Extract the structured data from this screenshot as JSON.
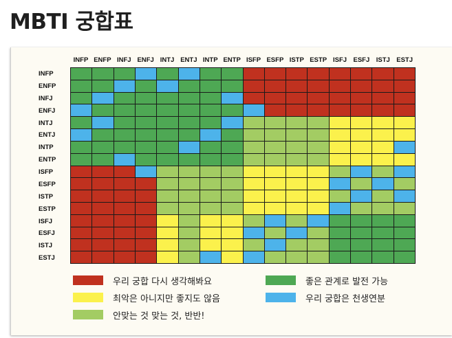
{
  "page": {
    "title": "MBTI 궁합표"
  },
  "colors": {
    "R": "#c0311f",
    "G": "#4ea854",
    "L": "#a3cc63",
    "Y": "#fbf14c",
    "B": "#4db3ea"
  },
  "chart_data": {
    "type": "heatmap",
    "columns": [
      "INFP",
      "ENFP",
      "INFJ",
      "ENFJ",
      "INTJ",
      "ENTJ",
      "INTP",
      "ENTP",
      "ISFP",
      "ESFP",
      "ISTP",
      "ESTP",
      "ISFJ",
      "ESFJ",
      "ISTJ",
      "ESTJ"
    ],
    "rows": [
      "INFP",
      "ENFP",
      "INFJ",
      "ENFJ",
      "INTJ",
      "ENTJ",
      "INTP",
      "ENTP",
      "ISFP",
      "ESFP",
      "ISTP",
      "ESTP",
      "ISFJ",
      "ESFJ",
      "ISTJ",
      "ESTJ"
    ],
    "matrix": [
      "GGGBGBGGRRRRRRRR",
      "GGBGBGGGRRRRRRRR",
      "GBGGGGGBRRRRRRRR",
      "BGGGGGGGBRRRRRRR",
      "GBGGGGGBLLLLYYYY",
      "BGGGGGBGLLLLYYYY",
      "GGGGGBGGLLLLYYYB",
      "GGBGGGGGLLLLYYYY",
      "RRRBLLLLYYYYLBLB",
      "RRRRLLLLYYYYBLBL",
      "RRRRLLLLYYYYLBLB",
      "RRRRLLLLYYYYBLLL",
      "RRRRYLYYLBLBGGGG",
      "RRRRYLYYBLBLGGGG",
      "RRRRYLYYLBLLGGGG",
      "RRRRYLBYBLLLGGGG"
    ],
    "legend": [
      {
        "key": "R",
        "label": "우리 궁합 다시 생각해봐요"
      },
      {
        "key": "G",
        "label": "좋은 관계로 발전 가능"
      },
      {
        "key": "Y",
        "label": "최악은 아니지만 좋지도 않음"
      },
      {
        "key": "B",
        "label": "우리 궁합은 천생연분"
      },
      {
        "key": "L",
        "label": "안맞는 것 맞는 것, 반반!"
      }
    ]
  }
}
